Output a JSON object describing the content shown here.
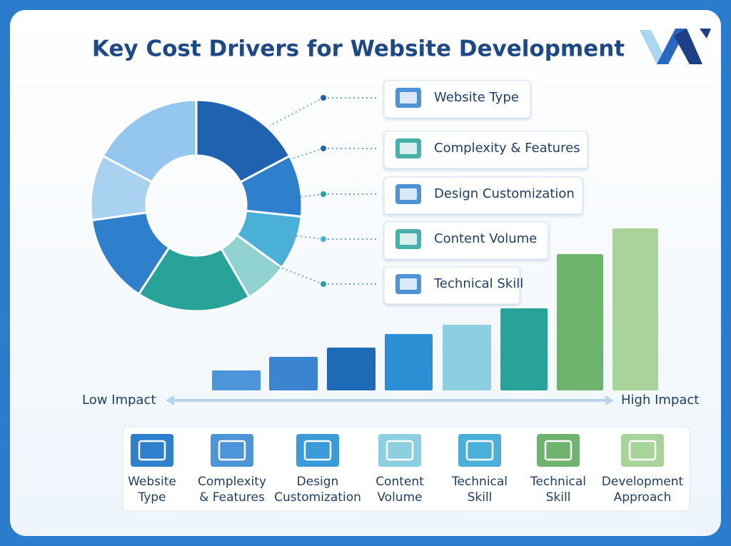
{
  "header": {
    "title": "Key Cost Drivers for Website Development"
  },
  "legend": {
    "items": [
      "Website Type",
      "Complexity & Features",
      "Design Customization",
      "Content Volume",
      "Technical Skill"
    ]
  },
  "scale": {
    "low": "Low Impact",
    "high": "High Impact"
  },
  "cards": [
    {
      "lines": [
        "Website",
        "Type"
      ]
    },
    {
      "lines": [
        "Complexity",
        "& Features"
      ]
    },
    {
      "lines": [
        "Design",
        "Customization"
      ]
    },
    {
      "lines": [
        "Content",
        "Volume"
      ]
    },
    {
      "lines": [
        "Technical",
        "Skill"
      ]
    },
    {
      "lines": [
        "Technical",
        "Skill"
      ]
    },
    {
      "lines": [
        "Development",
        "Approach"
      ]
    }
  ]
}
